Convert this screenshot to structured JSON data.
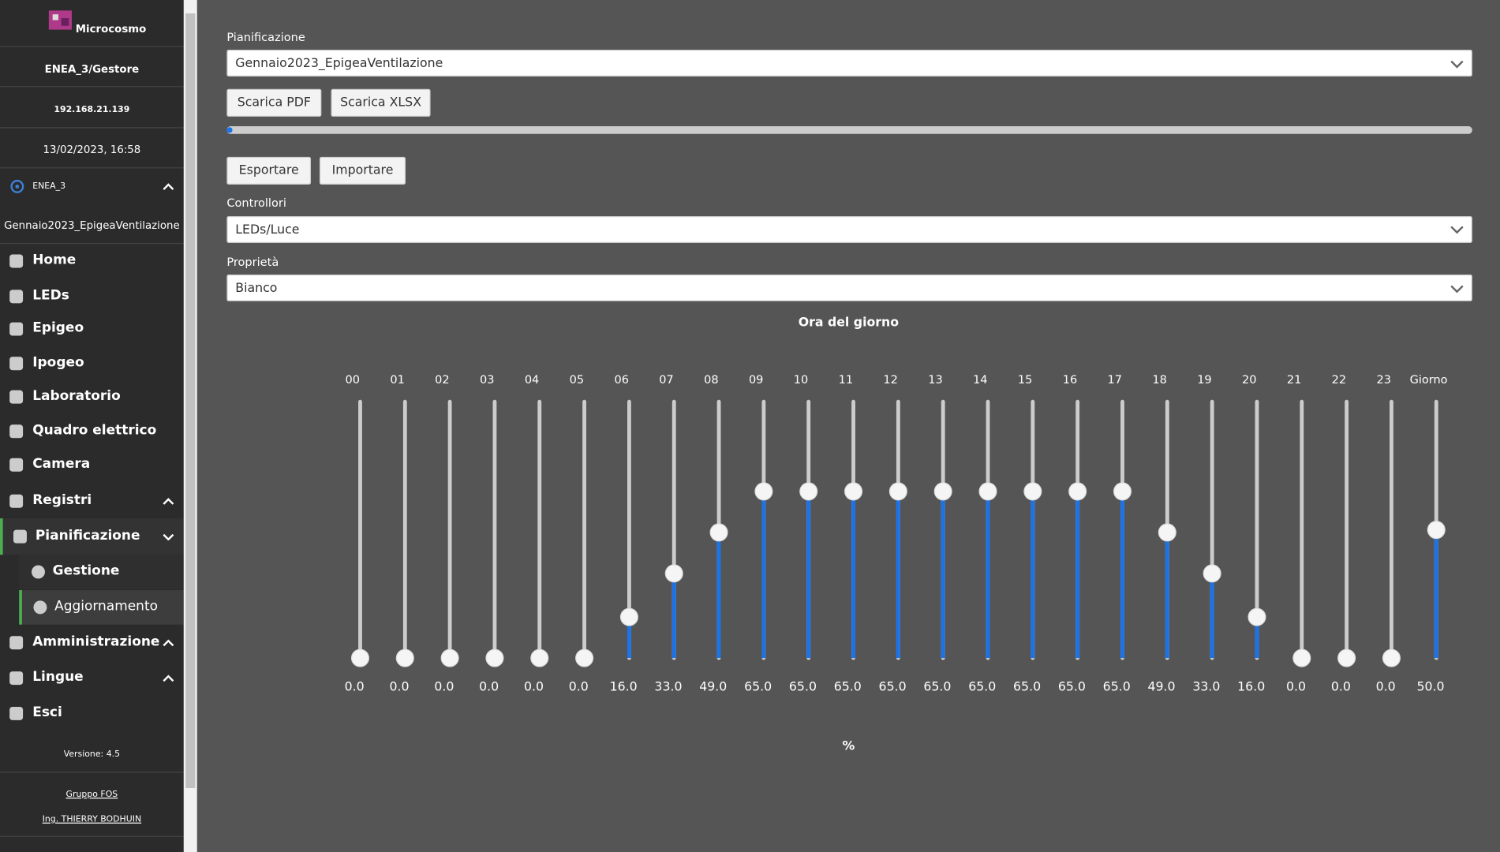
{
  "sidebar": {
    "app_name": "Microcosmo",
    "user": "ENEA_3/Gestore",
    "ip": "192.168.21.139",
    "datetime": "13/02/2023, 16:58",
    "device": "ENEA_3",
    "schedule": "Gennaio2023_EpigeaVentilazione",
    "menu": [
      "Home",
      "LEDs",
      "Epigeo",
      "Ipogeo",
      "Laboratorio",
      "Quadro elettrico",
      "Camera",
      "Registri",
      "Pianificazione",
      "Amministrazione",
      "Lingue",
      "Esci"
    ],
    "submenu": [
      "Gestione",
      "Aggiornamento"
    ],
    "version": "Versione: 4.5",
    "links": [
      "Gruppo FOS",
      "Ing. THIERRY BODHUIN"
    ]
  },
  "main": {
    "schedule_label": "Pianificazione",
    "schedule_value": "Gennaio2023_EpigeaVentilazione",
    "buttons": [
      "Scarica PDF",
      "Scarica XLSX",
      "Esportare",
      "Importare"
    ],
    "controllers_label": "Controllori",
    "controllers_value": "LEDs/Luce",
    "property_label": "Proprietà",
    "property_value": "Bianco",
    "sliders": {
      "title": "Ora del giorno",
      "unit": "%",
      "labels": [
        "00",
        "01",
        "02",
        "03",
        "04",
        "05",
        "06",
        "07",
        "08",
        "09",
        "10",
        "11",
        "12",
        "13",
        "14",
        "15",
        "16",
        "17",
        "18",
        "19",
        "20",
        "21",
        "22",
        "23",
        "Giorno"
      ],
      "values": [
        0,
        0,
        0,
        0,
        0,
        0,
        16,
        33,
        49,
        65,
        65,
        65,
        65,
        65,
        65,
        65,
        65,
        65,
        49,
        33,
        16,
        0,
        0,
        0,
        50
      ],
      "value_labels": [
        "0.0",
        "0.0",
        "0.0",
        "0.0",
        "0.0",
        "0.0",
        "16.0",
        "33.0",
        "49.0",
        "65.0",
        "65.0",
        "65.0",
        "65.0",
        "65.0",
        "65.0",
        "65.0",
        "65.0",
        "65.0",
        "49.0",
        "33.0",
        "16.0",
        "0.0",
        "0.0",
        "0.0",
        "50.0"
      ],
      "ylim": [
        0,
        100
      ]
    }
  }
}
